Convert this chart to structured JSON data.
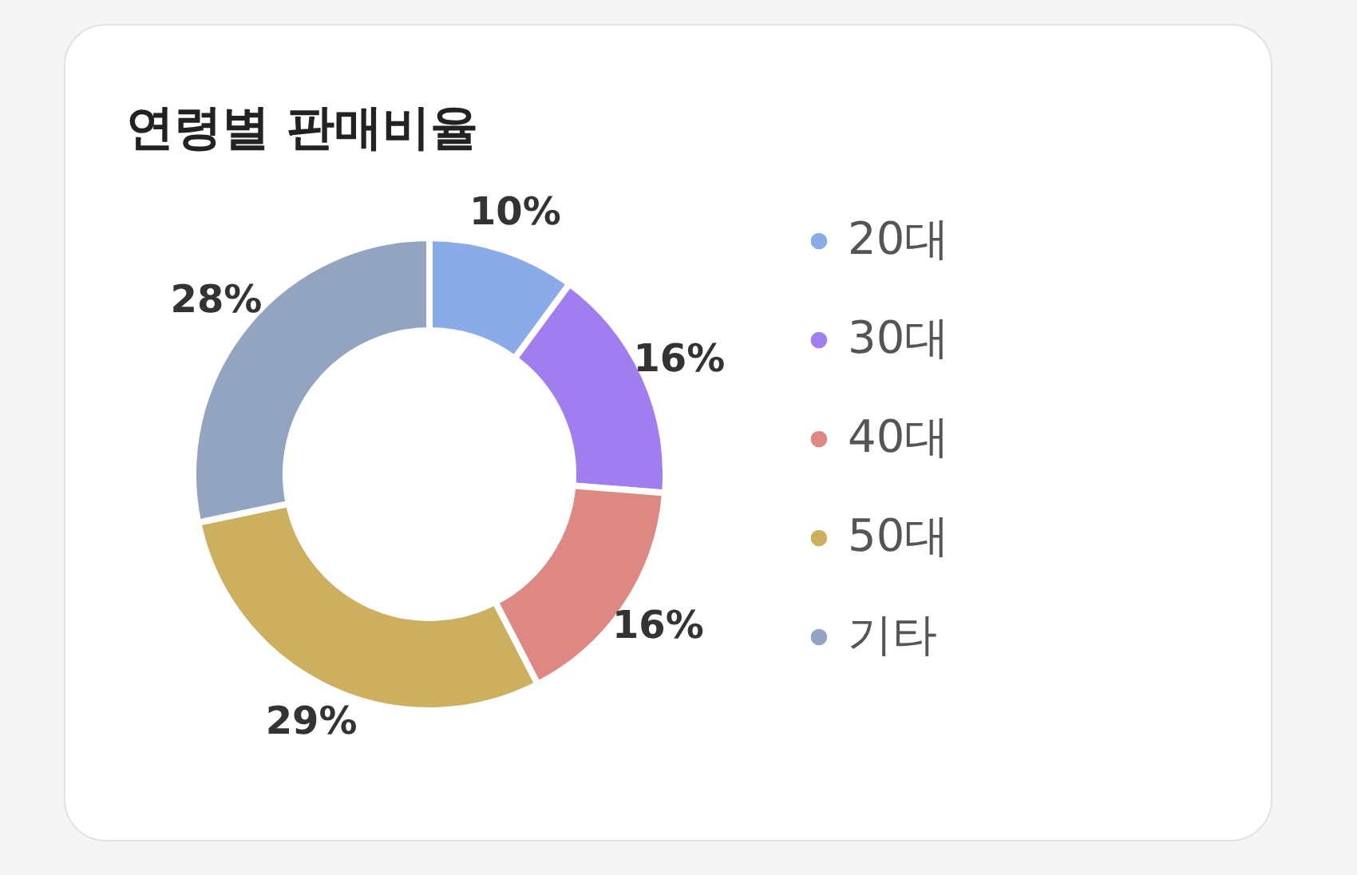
{
  "chart_data": {
    "type": "donut",
    "title": "연령별 판매비율",
    "categories": [
      "20대",
      "30대",
      "40대",
      "50대",
      "기타"
    ],
    "values": [
      10,
      16,
      16,
      29,
      28
    ],
    "value_labels": [
      "10%",
      "16%",
      "16%",
      "29%",
      "28%"
    ],
    "colors": [
      "#8aaae8",
      "#a17ef0",
      "#de8884",
      "#cdaf60",
      "#93a4c0"
    ],
    "legend": "right"
  }
}
